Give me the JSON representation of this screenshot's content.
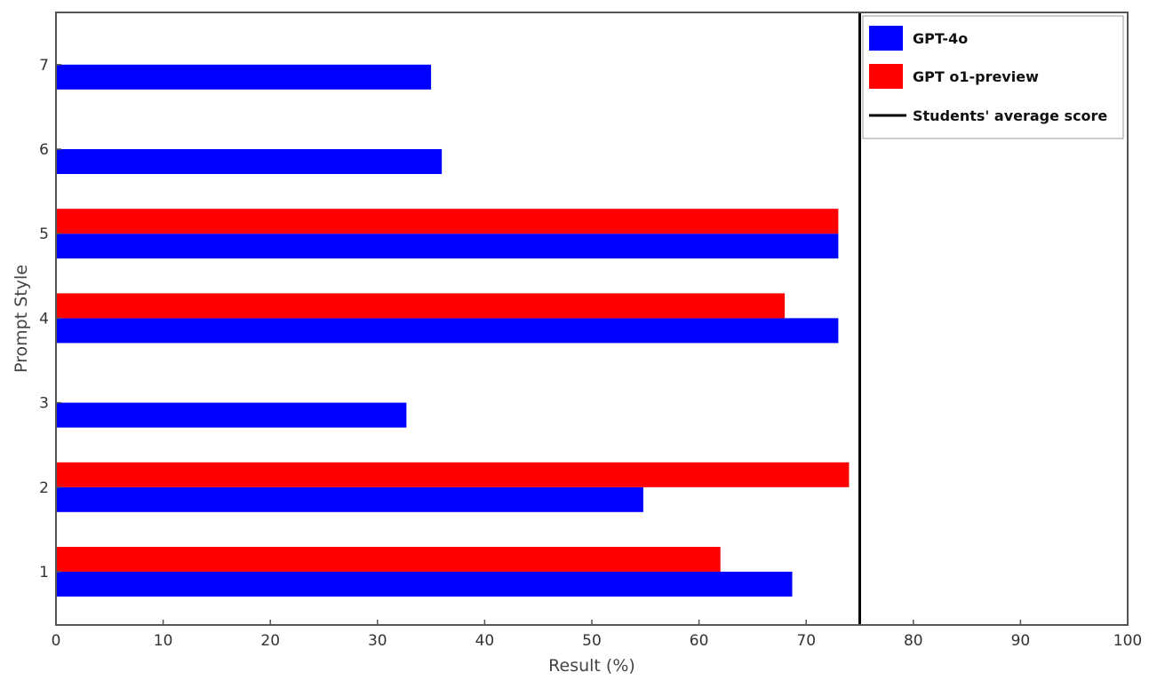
{
  "chart_data": {
    "type": "bar",
    "orientation": "horizontal",
    "title": "",
    "xlabel": "Result (%)",
    "ylabel": "Prompt Style",
    "xlim": [
      0,
      100
    ],
    "xticks": [
      "0",
      "10",
      "20",
      "30",
      "40",
      "50",
      "60",
      "70",
      "80",
      "90",
      "100"
    ],
    "categories": [
      "1",
      "2",
      "3",
      "4",
      "5",
      "6",
      "7"
    ],
    "series": [
      {
        "name": "GPT-4o",
        "color": "#0000ff",
        "values": [
          68.7,
          54.8,
          32.7,
          73.0,
          73.0,
          36.0,
          35.0
        ]
      },
      {
        "name": "GPT o1-preview",
        "color": "#ff0000",
        "values": [
          62.0,
          74.0,
          null,
          68.0,
          73.0,
          null,
          null
        ]
      }
    ],
    "reference_line": {
      "name": "Students' average score",
      "value": 75,
      "color": "#000000"
    },
    "legend_position": "top-right",
    "grid": false
  }
}
